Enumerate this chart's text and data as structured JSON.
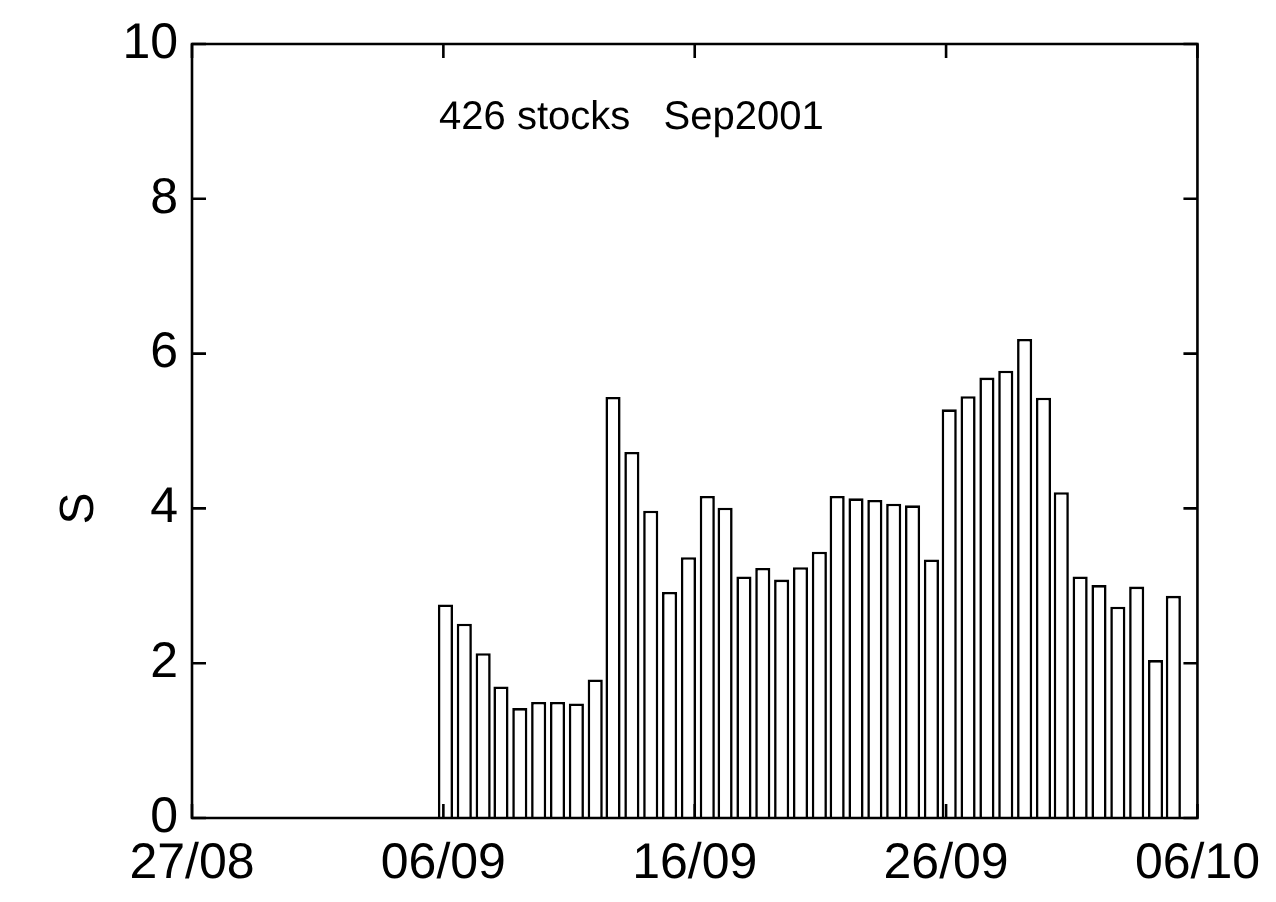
{
  "chart_data": {
    "type": "bar",
    "title": "426 stocks   Sep2001",
    "ylabel": "S",
    "x": [
      "2001-09-06T02:00",
      "2001-09-06T20:00",
      "2001-09-07T14:00",
      "2001-09-08T07:00",
      "2001-09-09T01:00",
      "2001-09-09T19:00",
      "2001-09-10T13:00",
      "2001-09-11T07:00",
      "2001-09-12T01:00",
      "2001-09-12T18:00",
      "2001-09-13T12:00",
      "2001-09-14T06:00",
      "2001-09-15T00:00",
      "2001-09-15T18:00",
      "2001-09-16T12:00",
      "2001-09-17T05:00",
      "2001-09-17T23:00",
      "2001-09-18T17:00",
      "2001-09-19T11:00",
      "2001-09-20T05:00",
      "2001-09-20T23:00",
      "2001-09-21T16:00",
      "2001-09-22T10:00",
      "2001-09-23T04:00",
      "2001-09-23T22:00",
      "2001-09-24T16:00",
      "2001-09-25T10:00",
      "2001-09-26T03:00",
      "2001-09-26T21:00",
      "2001-09-27T15:00",
      "2001-09-28T09:00",
      "2001-09-29T03:00",
      "2001-09-29T21:00",
      "2001-09-30T14:00",
      "2001-10-01T08:00",
      "2001-10-02T02:00",
      "2001-10-02T20:00",
      "2001-10-03T14:00",
      "2001-10-04T08:00",
      "2001-10-05T01:00"
    ],
    "values": [
      2.76,
      2.51,
      2.13,
      1.7,
      1.42,
      1.5,
      1.5,
      1.48,
      1.79,
      5.44,
      4.73,
      3.97,
      2.92,
      3.37,
      4.16,
      4.01,
      3.12,
      3.23,
      3.08,
      3.24,
      3.44,
      4.16,
      4.13,
      4.11,
      4.06,
      4.04,
      3.34,
      5.28,
      5.45,
      5.69,
      5.78,
      6.19,
      5.43,
      4.21,
      3.12,
      3.01,
      2.73,
      2.99,
      2.04,
      2.87
    ],
    "color": "#ffffff",
    "xlim": [
      "2001-08-27",
      "2001-10-06"
    ],
    "xticks": [
      {
        "value": "2001-08-27",
        "label": "27/08"
      },
      {
        "value": "2001-09-06",
        "label": "06/09"
      },
      {
        "value": "2001-09-16",
        "label": "16/09"
      },
      {
        "value": "2001-09-26",
        "label": "26/09"
      },
      {
        "value": "2001-10-06",
        "label": "06/10"
      }
    ],
    "ylim": [
      0,
      10
    ],
    "yticks": [
      0,
      2,
      4,
      6,
      8,
      10
    ],
    "grid": false,
    "legend": false
  }
}
